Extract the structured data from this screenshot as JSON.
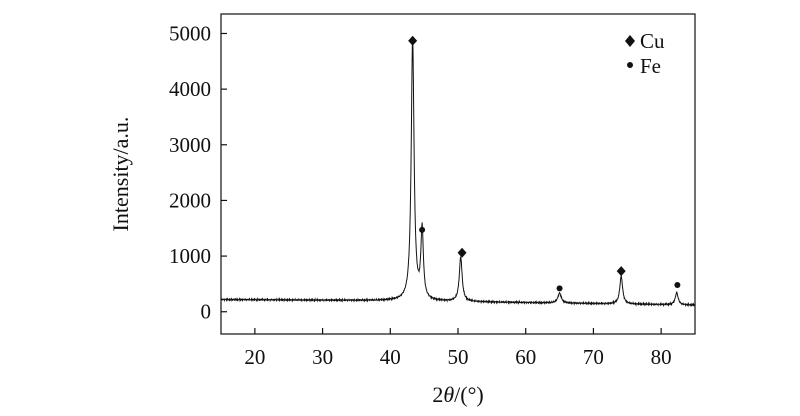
{
  "chart_data": {
    "type": "line",
    "xlabel_prefix": "2",
    "xlabel_theta": "θ",
    "xlabel_suffix": "/(°)",
    "ylabel": "Intensity/a.u.",
    "xlim": [
      15,
      85
    ],
    "ylim": [
      -400,
      5350
    ],
    "xticks": [
      20,
      30,
      40,
      50,
      60,
      70,
      80
    ],
    "yticks": [
      0,
      1000,
      2000,
      3000,
      4000,
      5000
    ],
    "baseline": {
      "x": [
        15,
        40,
        85
      ],
      "y": [
        220,
        200,
        120
      ]
    },
    "peaks": [
      {
        "x": 43.3,
        "height": 4700,
        "width": 0.25,
        "phase": "Cu"
      },
      {
        "x": 44.7,
        "height": 1250,
        "width": 0.22,
        "phase": "Fe"
      },
      {
        "x": 50.4,
        "height": 800,
        "width": 0.25,
        "phase": "Cu"
      },
      {
        "x": 65.0,
        "height": 180,
        "width": 0.3,
        "phase": "Fe"
      },
      {
        "x": 74.1,
        "height": 500,
        "width": 0.25,
        "phase": "Cu"
      },
      {
        "x": 82.3,
        "height": 220,
        "width": 0.25,
        "phase": "Fe"
      }
    ],
    "markers": [
      {
        "x": 43.3,
        "y": 4870,
        "symbol": "diamond",
        "phase": "Cu"
      },
      {
        "x": 44.7,
        "y": 1470,
        "symbol": "dot",
        "phase": "Fe"
      },
      {
        "x": 50.6,
        "y": 1060,
        "symbol": "diamond",
        "phase": "Cu"
      },
      {
        "x": 65.0,
        "y": 420,
        "symbol": "dot",
        "phase": "Fe"
      },
      {
        "x": 74.1,
        "y": 730,
        "symbol": "diamond",
        "phase": "Cu"
      },
      {
        "x": 82.4,
        "y": 480,
        "symbol": "dot",
        "phase": "Fe"
      }
    ],
    "legend": {
      "position": "top-right",
      "items": [
        {
          "symbol": "diamond",
          "label": "Cu"
        },
        {
          "symbol": "dot",
          "label": "Fe"
        }
      ]
    },
    "colors": {
      "line": "#111111",
      "axes": "#111111"
    }
  }
}
